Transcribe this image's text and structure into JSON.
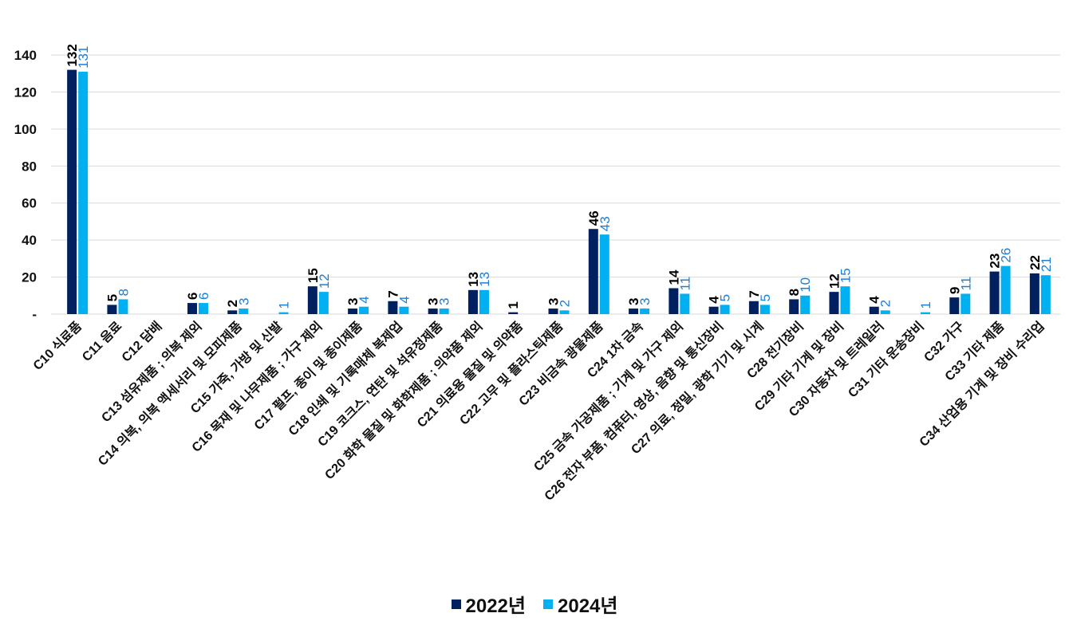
{
  "chart_data": {
    "type": "bar",
    "title": "",
    "xlabel": "",
    "ylabel": "",
    "ylim": [
      0,
      140
    ],
    "yticks": [
      0,
      20,
      40,
      60,
      80,
      100,
      120,
      140
    ],
    "ytick_labels": [
      "-",
      "20",
      "40",
      "60",
      "80",
      "100",
      "120",
      "140"
    ],
    "grid": true,
    "legend_position": "bottom",
    "categories": [
      "C10 식료품",
      "C11 음료",
      "C12 담배",
      "C13 섬유제품 ; 의복 제외",
      "C14 의복, 의복 액세서리 및 모피제품",
      "C15 가죽, 가방 및 신발",
      "C16 목재 및 나무제품 ; 가구 제외",
      "C17 펄프, 종이 및 종이제품",
      "C18 인쇄 및 기록매체 복제업",
      "C19 코크스, 연탄 및 석유정제품",
      "C20 화학 물질 및 화학제품 ; 의약품 제외",
      "C21 의료용 물질 및 의약품",
      "C22 고무 및 플라스틱제품",
      "C23 비금속 광물제품",
      "C24 1차 금속",
      "C25 금속 가공제품 ; 기계 및 가구 제외",
      "C26 전자 부품, 컴퓨터, 영상, 음향 및 통신장비",
      "C27 의료, 정밀, 광학 기기 및 시계",
      "C28 전기장비",
      "C29 기타 기계 및 장비",
      "C30 자동차 및 트레일러",
      "C31 기타 운송장비",
      "C32 가구",
      "C33 기타 제품",
      "C34 산업용 기계 및 장비 수리업"
    ],
    "series": [
      {
        "name": "2022년",
        "color": "#002060",
        "values": [
          132,
          5,
          null,
          6,
          2,
          null,
          15,
          3,
          7,
          3,
          13,
          1,
          3,
          46,
          3,
          14,
          4,
          7,
          8,
          12,
          4,
          null,
          9,
          23,
          22
        ]
      },
      {
        "name": "2024년",
        "color": "#00B0F0",
        "values": [
          131,
          8,
          null,
          6,
          3,
          1,
          12,
          4,
          4,
          3,
          13,
          null,
          2,
          43,
          3,
          11,
          5,
          5,
          10,
          15,
          2,
          1,
          11,
          26,
          21
        ]
      }
    ],
    "label_colors": [
      "#000000",
      "#1C7ED6"
    ]
  }
}
